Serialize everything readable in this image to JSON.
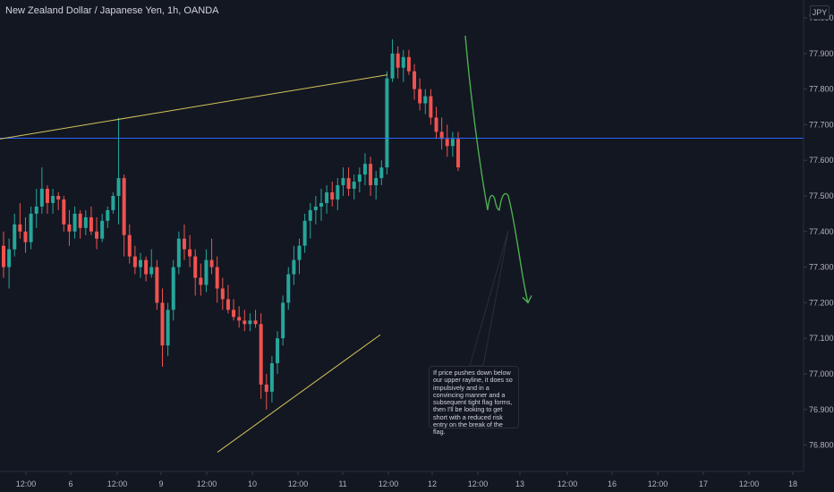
{
  "header": {
    "title": "New Zealand Dollar / Japanese Yen, 1h, OANDA"
  },
  "currency": "JPY",
  "annotation": {
    "text": "If price pushes down below our upper rayline, it does so impulsively and in a convincing manner and a subsequent tight flag forms, then I'll be looking to get short with a reduced risk entry on the break of the flag."
  },
  "colors": {
    "background": "#131722",
    "up_candle": "#26a69a",
    "down_candle": "#ef5350",
    "trendline": "#d4c55a",
    "horizontal_line": "#2962ff",
    "projection": "#4caf50",
    "axis_text": "#b2b5be"
  },
  "chart_data": {
    "type": "candlestick",
    "title": "New Zealand Dollar / Japanese Yen, 1h, OANDA",
    "currency": "JPY",
    "y_ticks": [
      "78.000",
      "77.900",
      "77.800",
      "77.700",
      "77.600",
      "77.500",
      "77.400",
      "77.300",
      "77.200",
      "77.100",
      "77.000",
      "76.900",
      "76.800"
    ],
    "ylim": [
      76.78,
      78.06
    ],
    "x_ticks": [
      "12:00",
      "6",
      "12:00",
      "9",
      "12:00",
      "10",
      "12:00",
      "11",
      "12:00",
      "12",
      "12:00",
      "13",
      "12:00",
      "16",
      "12:00",
      "17",
      "12:00",
      "18"
    ],
    "horizontal_level": 77.662,
    "upper_trendline": {
      "from_price": 77.66,
      "to_price": 77.84
    },
    "lower_trendline": {
      "from_price": 76.78,
      "to_price": 77.11
    },
    "candles_ohlc": [
      [
        77.36,
        77.4,
        77.27,
        77.3
      ],
      [
        77.3,
        77.38,
        77.24,
        77.35
      ],
      [
        77.35,
        77.45,
        77.33,
        77.42
      ],
      [
        77.42,
        77.48,
        77.38,
        77.4
      ],
      [
        77.4,
        77.44,
        77.34,
        77.37
      ],
      [
        77.37,
        77.47,
        77.35,
        77.45
      ],
      [
        77.45,
        77.52,
        77.41,
        77.47
      ],
      [
        77.47,
        77.58,
        77.45,
        77.52
      ],
      [
        77.52,
        77.53,
        77.45,
        77.48
      ],
      [
        77.48,
        77.52,
        77.45,
        77.5
      ],
      [
        77.5,
        77.51,
        77.46,
        77.49
      ],
      [
        77.49,
        77.5,
        77.4,
        77.42
      ],
      [
        77.42,
        77.46,
        77.36,
        77.4
      ],
      [
        77.4,
        77.47,
        77.38,
        77.45
      ],
      [
        77.45,
        77.46,
        77.38,
        77.41
      ],
      [
        77.41,
        77.46,
        77.39,
        77.44
      ],
      [
        77.44,
        77.47,
        77.39,
        77.4
      ],
      [
        77.4,
        77.44,
        77.35,
        77.38
      ],
      [
        77.38,
        77.45,
        77.37,
        77.43
      ],
      [
        77.43,
        77.47,
        77.41,
        77.46
      ],
      [
        77.46,
        77.51,
        77.45,
        77.5
      ],
      [
        77.5,
        77.72,
        77.42,
        77.55
      ],
      [
        77.55,
        77.56,
        77.33,
        77.39
      ],
      [
        77.39,
        77.42,
        77.31,
        77.33
      ],
      [
        77.33,
        77.36,
        77.28,
        77.3
      ],
      [
        77.3,
        77.34,
        77.27,
        77.32
      ],
      [
        77.32,
        77.33,
        77.26,
        77.28
      ],
      [
        77.28,
        77.35,
        77.27,
        77.3
      ],
      [
        77.3,
        77.32,
        77.18,
        77.2
      ],
      [
        77.2,
        77.24,
        77.02,
        77.08
      ],
      [
        77.08,
        77.2,
        77.05,
        77.18
      ],
      [
        77.18,
        77.32,
        77.15,
        77.3
      ],
      [
        77.3,
        77.4,
        77.28,
        77.38
      ],
      [
        77.38,
        77.42,
        77.32,
        77.35
      ],
      [
        77.35,
        77.39,
        77.3,
        77.33
      ],
      [
        77.33,
        77.35,
        77.22,
        77.27
      ],
      [
        77.27,
        77.31,
        77.22,
        77.25
      ],
      [
        77.25,
        77.35,
        77.23,
        77.32
      ],
      [
        77.32,
        77.38,
        77.28,
        77.3
      ],
      [
        77.3,
        77.33,
        77.2,
        77.24
      ],
      [
        77.24,
        77.27,
        77.18,
        77.21
      ],
      [
        77.21,
        77.25,
        77.17,
        77.18
      ],
      [
        77.18,
        77.21,
        77.15,
        77.16
      ],
      [
        77.16,
        77.19,
        77.13,
        77.15
      ],
      [
        77.15,
        77.18,
        77.12,
        77.14
      ],
      [
        77.14,
        77.17,
        77.12,
        77.15
      ],
      [
        77.15,
        77.18,
        77.13,
        77.14
      ],
      [
        77.14,
        77.17,
        76.93,
        76.97
      ],
      [
        76.97,
        77.0,
        76.9,
        76.95
      ],
      [
        76.95,
        77.05,
        76.92,
        77.03
      ],
      [
        77.03,
        77.12,
        77.0,
        77.1
      ],
      [
        77.1,
        77.22,
        77.08,
        77.2
      ],
      [
        77.2,
        77.3,
        77.18,
        77.28
      ],
      [
        77.28,
        77.36,
        77.25,
        77.32
      ],
      [
        77.32,
        77.38,
        77.28,
        77.36
      ],
      [
        77.36,
        77.45,
        77.34,
        77.43
      ],
      [
        77.43,
        77.48,
        77.38,
        77.46
      ],
      [
        77.46,
        77.5,
        77.42,
        77.47
      ],
      [
        77.47,
        77.52,
        77.43,
        77.48
      ],
      [
        77.48,
        77.53,
        77.45,
        77.51
      ],
      [
        77.51,
        77.54,
        77.47,
        77.49
      ],
      [
        77.49,
        77.55,
        77.46,
        77.53
      ],
      [
        77.53,
        77.58,
        77.5,
        77.55
      ],
      [
        77.55,
        77.58,
        77.5,
        77.52
      ],
      [
        77.52,
        77.56,
        77.49,
        77.54
      ],
      [
        77.54,
        77.58,
        77.51,
        77.56
      ],
      [
        77.56,
        77.62,
        77.53,
        77.59
      ],
      [
        77.59,
        77.61,
        77.5,
        77.53
      ],
      [
        77.53,
        77.57,
        77.49,
        77.55
      ],
      [
        77.55,
        77.6,
        77.53,
        77.58
      ],
      [
        77.58,
        77.85,
        77.56,
        77.83
      ],
      [
        77.83,
        77.94,
        77.82,
        77.9
      ],
      [
        77.9,
        77.92,
        77.83,
        77.86
      ],
      [
        77.86,
        77.91,
        77.82,
        77.89
      ],
      [
        77.89,
        77.91,
        77.84,
        77.85
      ],
      [
        77.85,
        77.87,
        77.77,
        77.8
      ],
      [
        77.8,
        77.83,
        77.74,
        77.76
      ],
      [
        77.76,
        77.8,
        77.73,
        77.78
      ],
      [
        77.78,
        77.8,
        77.7,
        77.72
      ],
      [
        77.72,
        77.75,
        77.66,
        77.68
      ],
      [
        77.68,
        77.72,
        77.63,
        77.66
      ],
      [
        77.66,
        77.7,
        77.61,
        77.64
      ],
      [
        77.64,
        77.68,
        77.61,
        77.66
      ],
      [
        77.66,
        77.68,
        77.57,
        77.58
      ]
    ],
    "projection_path": [
      {
        "label": "start",
        "price": 77.95
      },
      {
        "label": "low1",
        "price": 77.46
      },
      {
        "label": "high1",
        "price": 77.49
      },
      {
        "label": "low2",
        "price": 77.46
      },
      {
        "label": "high2",
        "price": 77.5
      },
      {
        "label": "target",
        "price": 77.2
      }
    ]
  }
}
